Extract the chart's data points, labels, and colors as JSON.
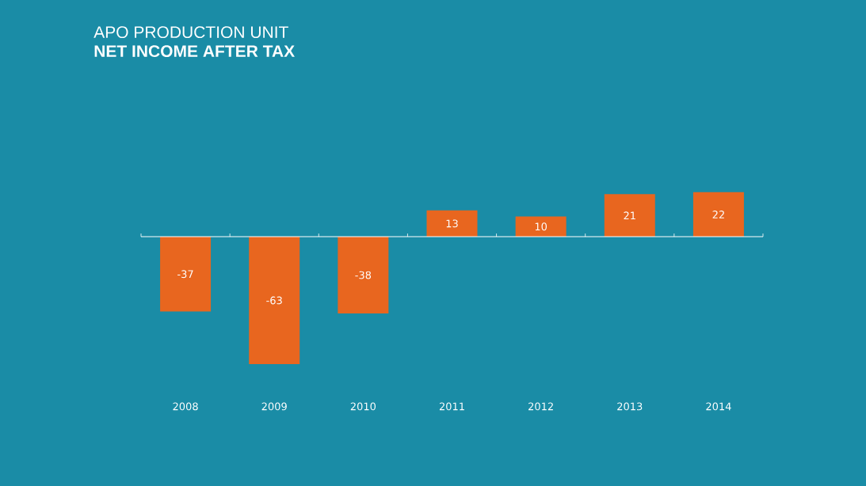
{
  "chart_data": {
    "type": "bar",
    "title": "APO PRODUCTION UNIT",
    "subtitle": "NET INCOME AFTER TAX",
    "categories": [
      "2008",
      "2009",
      "2010",
      "2011",
      "2012",
      "2013",
      "2014"
    ],
    "values": [
      -37,
      -63,
      -38,
      13,
      10,
      21,
      22
    ],
    "color": "#e8661f",
    "data_labels": true
  }
}
